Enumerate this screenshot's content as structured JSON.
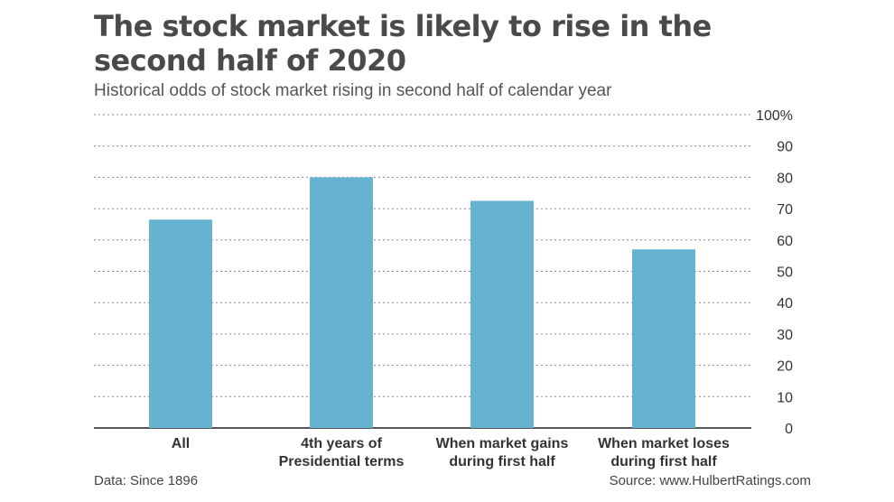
{
  "chart_data": {
    "type": "bar",
    "title": "The stock market is likely to rise in the second half of 2020",
    "subtitle": "Historical odds of stock market rising in second half of calendar year",
    "categories": [
      [
        "All"
      ],
      [
        "4th years of",
        "Presidential terms"
      ],
      [
        "When market gains",
        "during first half"
      ],
      [
        "When market loses",
        "during  first half"
      ]
    ],
    "values": [
      66.5,
      80,
      72.5,
      57
    ],
    "ylim": [
      0,
      100
    ],
    "yticks": [
      "0",
      "10",
      "20",
      "30",
      "40",
      "50",
      "60",
      "70",
      "80",
      "90",
      "100%"
    ],
    "grid": true,
    "bar_color": "#66b2d1",
    "grid_color": "#8a8a8a"
  },
  "footer": {
    "data_note": "Data: Since 1896",
    "source": "Source: www.HulbertRatings.com"
  }
}
